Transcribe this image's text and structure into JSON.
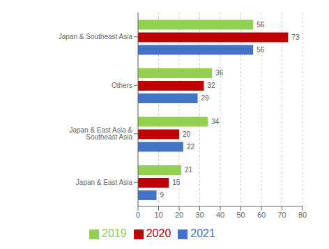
{
  "chart_data": {
    "type": "bar",
    "orientation": "horizontal",
    "categories": [
      "Japan & Southeast Asia",
      "Others",
      "Japan & East Asia & Southeast Asia",
      "Japan & East Asia"
    ],
    "series": [
      {
        "name": "2019",
        "color": "#92d050",
        "values": [
          56,
          36,
          34,
          21
        ]
      },
      {
        "name": "2020",
        "color": "#c00000",
        "values": [
          73,
          32,
          20,
          15
        ]
      },
      {
        "name": "2021",
        "color": "#4472c4",
        "values": [
          56,
          29,
          22,
          9
        ]
      }
    ],
    "xlim": [
      0,
      80
    ],
    "xticks": [
      0,
      10,
      20,
      30,
      40,
      50,
      60,
      70,
      80
    ],
    "grid": true,
    "data_labels": true,
    "legend": "bottom"
  }
}
